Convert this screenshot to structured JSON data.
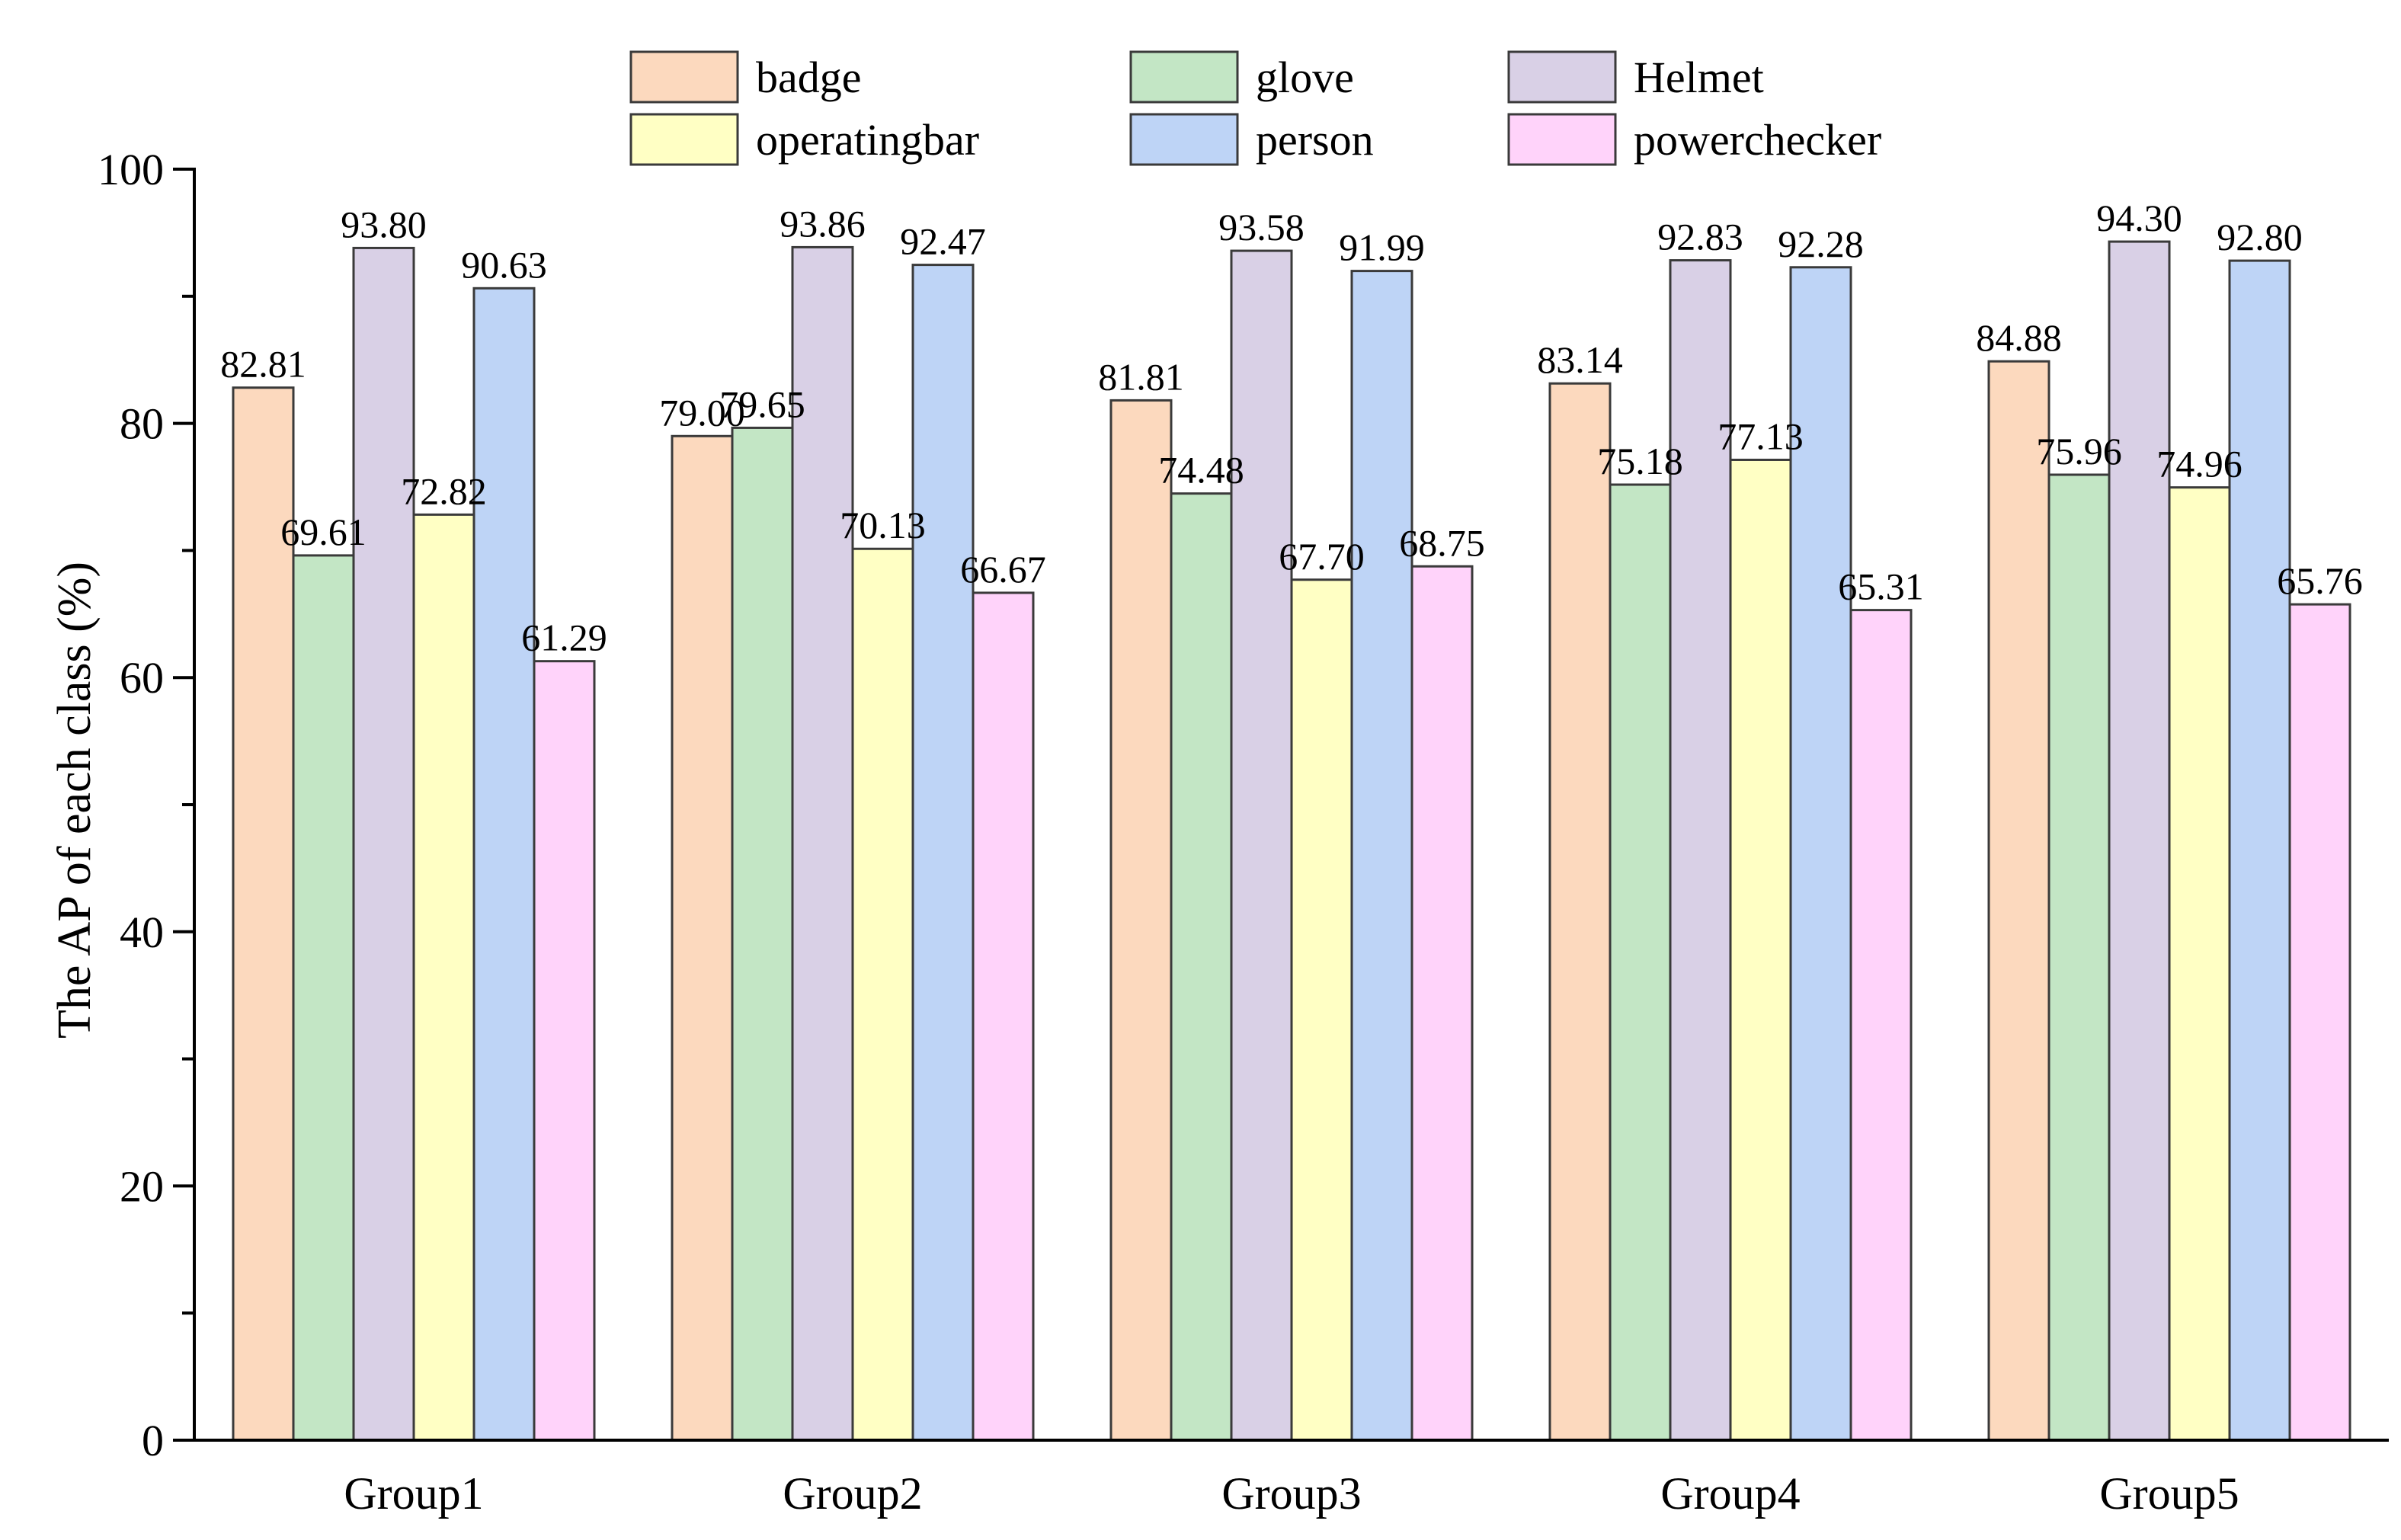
{
  "chart_data": {
    "type": "bar",
    "title": "",
    "xlabel": "",
    "ylabel": "The AP of each class (%)",
    "ylim": [
      0,
      100
    ],
    "yticks": [
      0,
      20,
      40,
      60,
      80,
      100
    ],
    "grid": false,
    "legend_position": "top",
    "categories": [
      "Group1",
      "Group2",
      "Group3",
      "Group4",
      "Group5"
    ],
    "series": [
      {
        "name": "badge",
        "color": "#FCD9BE",
        "values": [
          82.81,
          79.0,
          81.81,
          83.14,
          84.88
        ],
        "labels": [
          "82.81",
          "79.00",
          "81.81",
          "83.14",
          "84.88"
        ]
      },
      {
        "name": "glove",
        "color": "#C3E6C5",
        "values": [
          69.61,
          79.65,
          74.48,
          75.18,
          75.96
        ],
        "labels": [
          "69.61",
          "79.65",
          "74.48",
          "75.18",
          "75.96"
        ]
      },
      {
        "name": "Helmet",
        "color": "#D9D0E6",
        "values": [
          93.8,
          93.86,
          93.58,
          92.83,
          94.3
        ],
        "labels": [
          "93.80",
          "93.86",
          "93.58",
          "92.83",
          "94.30"
        ]
      },
      {
        "name": "operatingbar",
        "color": "#FFFFC4",
        "values": [
          72.82,
          70.13,
          67.7,
          77.13,
          74.96
        ],
        "labels": [
          "72.82",
          "70.13",
          "67.70",
          "77.13",
          "74.96"
        ]
      },
      {
        "name": "person",
        "color": "#BED4F6",
        "values": [
          90.63,
          92.47,
          91.99,
          92.28,
          92.8
        ],
        "labels": [
          "90.63",
          "92.47",
          "91.99",
          "92.28",
          "92.80"
        ]
      },
      {
        "name": "powerchecker",
        "color": "#FFD3FA",
        "values": [
          61.29,
          66.67,
          68.75,
          65.31,
          65.76
        ],
        "labels": [
          "61.29",
          "66.67",
          "68.75",
          "65.31",
          "65.76"
        ]
      }
    ]
  }
}
